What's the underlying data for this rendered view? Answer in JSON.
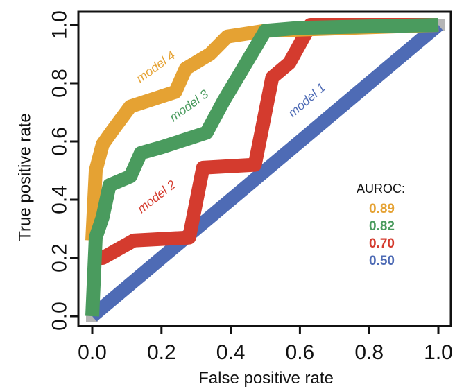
{
  "chart_data": {
    "type": "line",
    "title": "",
    "xlabel": "False positive rate",
    "ylabel": "True positive rate",
    "xlim": [
      0,
      1
    ],
    "ylim": [
      0,
      1
    ],
    "x_ticks": [
      "0.0",
      "0.2",
      "0.4",
      "0.6",
      "0.8",
      "1.0"
    ],
    "y_ticks": [
      "0.0",
      "0.2",
      "0.4",
      "0.6",
      "0.8",
      "1.0"
    ],
    "grid": false,
    "legend": {
      "title": "AUROC:",
      "position": "right",
      "entries": [
        "0.89",
        "0.82",
        "0.70",
        "0.50"
      ]
    },
    "series": [
      {
        "name": "model 1",
        "auroc": "0.50",
        "color": "#4e6bb5",
        "points": [
          [
            0,
            0
          ],
          [
            1,
            1
          ]
        ]
      },
      {
        "name": "model 2",
        "auroc": "0.70",
        "color": "#d43b2e",
        "points": [
          [
            0,
            0.2
          ],
          [
            0.03,
            0.2
          ],
          [
            0.12,
            0.26
          ],
          [
            0.28,
            0.27
          ],
          [
            0.32,
            0.51
          ],
          [
            0.47,
            0.52
          ],
          [
            0.52,
            0.82
          ],
          [
            0.57,
            0.87
          ],
          [
            0.63,
            1.0
          ],
          [
            1,
            1.0
          ]
        ]
      },
      {
        "name": "model 3",
        "auroc": "0.82",
        "color": "#4a9b5e",
        "points": [
          [
            0,
            0
          ],
          [
            0.01,
            0.27
          ],
          [
            0.03,
            0.34
          ],
          [
            0.05,
            0.45
          ],
          [
            0.11,
            0.48
          ],
          [
            0.14,
            0.56
          ],
          [
            0.2,
            0.58
          ],
          [
            0.33,
            0.63
          ],
          [
            0.38,
            0.74
          ],
          [
            0.42,
            0.82
          ],
          [
            0.5,
            0.98
          ],
          [
            0.6,
            0.99
          ],
          [
            1,
            1.0
          ]
        ]
      },
      {
        "name": "model 4",
        "auroc": "0.89",
        "color": "#e5a233",
        "points": [
          [
            0,
            0.26
          ],
          [
            0.01,
            0.5
          ],
          [
            0.03,
            0.59
          ],
          [
            0.06,
            0.64
          ],
          [
            0.11,
            0.72
          ],
          [
            0.24,
            0.77
          ],
          [
            0.27,
            0.85
          ],
          [
            0.34,
            0.9
          ],
          [
            0.39,
            0.96
          ],
          [
            0.5,
            0.98
          ],
          [
            1,
            1.0
          ]
        ]
      }
    ]
  }
}
